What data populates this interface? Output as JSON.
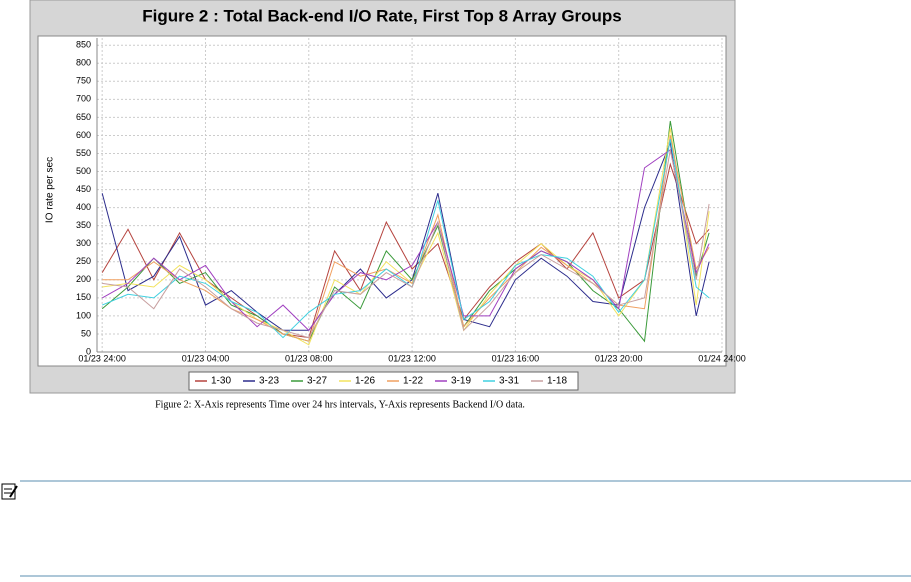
{
  "chart_data": {
    "type": "line",
    "title": "Figure 2 : Total Back-end I/O Rate, First Top 8 Array Groups",
    "y_label": "IO rate per sec",
    "x": [
      0,
      1,
      2,
      3,
      4,
      5,
      6,
      7,
      8,
      9,
      10,
      11,
      12,
      13,
      14,
      15,
      16,
      17,
      18,
      19,
      20,
      21,
      22,
      23,
      23.5
    ],
    "xlim": [
      -0.2,
      24
    ],
    "xticks": [
      {
        "value": 0,
        "label": "01/23 24:00"
      },
      {
        "value": 4,
        "label": "01/23 04:00"
      },
      {
        "value": 8,
        "label": "01/23 08:00"
      },
      {
        "value": 12,
        "label": "01/23 12:00"
      },
      {
        "value": 16,
        "label": "01/23 16:00"
      },
      {
        "value": 20,
        "label": "01/23 20:00"
      },
      {
        "value": 24,
        "label": "01/24 24:00"
      }
    ],
    "ylim": [
      0,
      870
    ],
    "yticks": [
      0,
      50,
      100,
      150,
      200,
      250,
      300,
      350,
      400,
      450,
      500,
      550,
      600,
      650,
      700,
      750,
      800,
      850
    ],
    "grid": true,
    "series": [
      {
        "name": "1-30",
        "color": "#b5433e",
        "values": [
          220,
          340,
          200,
          330,
          200,
          150,
          100,
          50,
          40,
          280,
          170,
          360,
          230,
          300,
          90,
          180,
          250,
          300,
          230,
          330,
          150,
          200,
          520,
          300,
          340
        ]
      },
      {
        "name": "3-23",
        "color": "#2c2c8c",
        "values": [
          440,
          170,
          210,
          320,
          130,
          170,
          110,
          60,
          60,
          160,
          230,
          150,
          200,
          440,
          90,
          70,
          200,
          260,
          210,
          140,
          130,
          400,
          580,
          100,
          250
        ]
      },
      {
        "name": "3-27",
        "color": "#3a9a3a",
        "values": [
          120,
          180,
          260,
          190,
          220,
          130,
          100,
          50,
          30,
          180,
          120,
          280,
          200,
          350,
          70,
          170,
          230,
          280,
          250,
          170,
          120,
          30,
          640,
          210,
          330
        ]
      },
      {
        "name": "1-26",
        "color": "#f2e25e",
        "values": [
          180,
          190,
          180,
          240,
          200,
          140,
          90,
          60,
          20,
          200,
          160,
          250,
          190,
          330,
          60,
          160,
          240,
          300,
          240,
          200,
          100,
          200,
          620,
          130,
          390
        ]
      },
      {
        "name": "1-22",
        "color": "#f0a060",
        "values": [
          200,
          200,
          250,
          200,
          170,
          120,
          90,
          50,
          30,
          250,
          210,
          230,
          190,
          380,
          70,
          150,
          220,
          290,
          240,
          190,
          130,
          120,
          600,
          230,
          290
        ]
      },
      {
        "name": "3-19",
        "color": "#a040c0",
        "values": [
          150,
          190,
          260,
          200,
          240,
          140,
          70,
          130,
          60,
          160,
          220,
          200,
          240,
          360,
          100,
          100,
          230,
          280,
          250,
          200,
          120,
          510,
          560,
          220,
          300
        ]
      },
      {
        "name": "3-31",
        "color": "#40d0e0",
        "values": [
          130,
          160,
          150,
          210,
          190,
          140,
          110,
          40,
          110,
          160,
          170,
          230,
          180,
          420,
          90,
          140,
          240,
          270,
          260,
          210,
          110,
          200,
          590,
          180,
          150
        ]
      },
      {
        "name": "1-18",
        "color": "#c8a0a0",
        "values": [
          190,
          180,
          120,
          230,
          180,
          120,
          80,
          60,
          40,
          170,
          160,
          220,
          180,
          360,
          60,
          130,
          220,
          270,
          230,
          190,
          130,
          150,
          560,
          200,
          410
        ]
      }
    ]
  },
  "caption": "Figure 2: X-Axis represents Time over 24 hrs intervals, Y-Axis represents Backend I/O data."
}
